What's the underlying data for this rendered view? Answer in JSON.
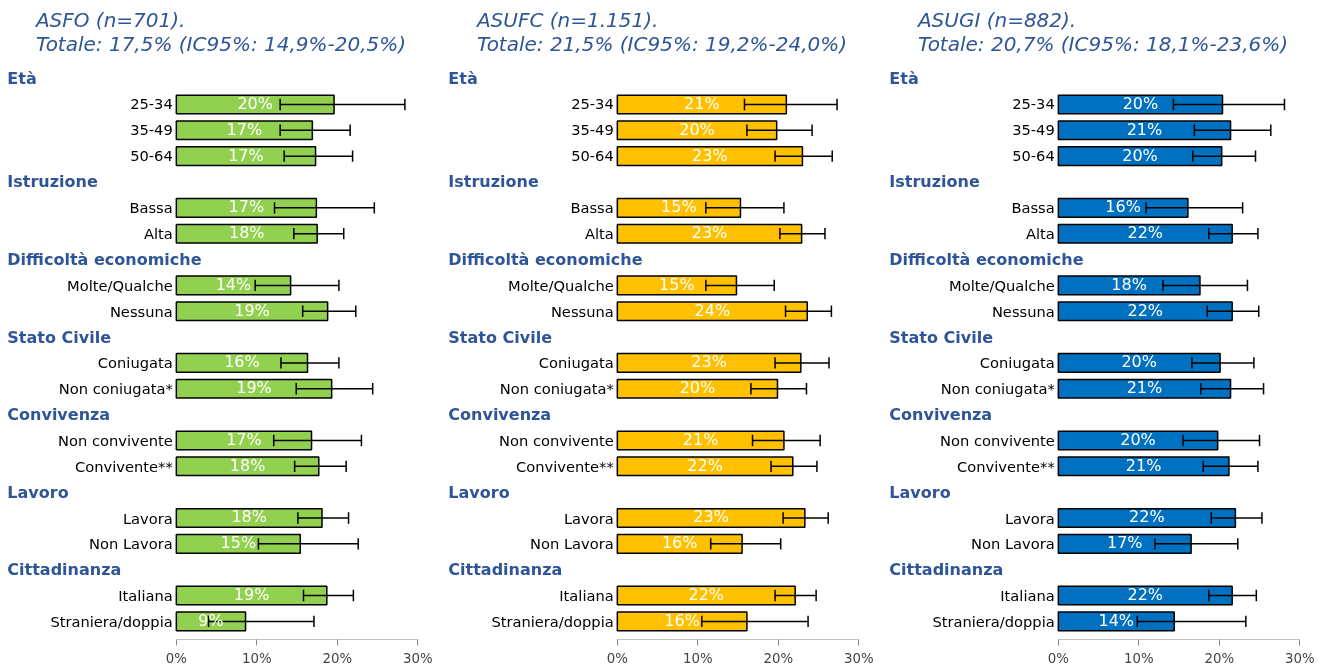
{
  "chart_data": [
    {
      "type": "bar",
      "orientation": "horizontal",
      "title": "ASFO (n=701).\nTotale: 17,5% (IC95%: 14,9%-20,5%)",
      "color": "#92d050",
      "categories": [
        null,
        "25-34",
        "35-49",
        "50-64",
        null,
        "Bassa",
        "Alta",
        null,
        "Molte/Qualche",
        "Nessuna",
        null,
        "Coniugata",
        "Non coniugata*",
        null,
        "Non convivente",
        "Convivente**",
        null,
        "Lavora",
        "Non Lavora",
        null,
        "Italiana",
        "Straniera/doppia"
      ],
      "annotations": [
        "Età",
        "Istruzione",
        "Difficoltà economiche",
        "Stato Civile",
        "Convivenza",
        "Lavoro",
        "Cittadinanza"
      ],
      "values": [
        null,
        19.6,
        16.9,
        17.3,
        null,
        17.4,
        17.5,
        null,
        14.2,
        18.8,
        null,
        16.3,
        19.3,
        null,
        16.8,
        17.7,
        null,
        18.1,
        15.4,
        null,
        18.7,
        8.6
      ],
      "value_labels": [
        null,
        "20%",
        "17%",
        "17%",
        null,
        "17%",
        "18%",
        null,
        "14%",
        "19%",
        null,
        "16%",
        "19%",
        null,
        "17%",
        "18%",
        null,
        "18%",
        "15%",
        null,
        "19%",
        "9%"
      ],
      "errors": [
        null,
        [
          12.9,
          28.4
        ],
        [
          12.9,
          21.6
        ],
        [
          13.4,
          21.9
        ],
        null,
        [
          12.2,
          24.6
        ],
        [
          14.6,
          20.8
        ],
        null,
        [
          9.8,
          20.2
        ],
        [
          15.7,
          22.3
        ],
        null,
        [
          13.0,
          20.2
        ],
        [
          14.9,
          24.4
        ],
        null,
        [
          12.1,
          23.0
        ],
        [
          14.7,
          21.1
        ],
        null,
        [
          15.1,
          21.4
        ],
        [
          10.2,
          22.6
        ],
        null,
        [
          15.8,
          22.0
        ],
        [
          4.0,
          17.1
        ]
      ],
      "xlim": [
        0,
        30
      ],
      "xticks": [
        {
          "value": 0,
          "label": "0%"
        },
        {
          "value": 10,
          "label": "10%"
        },
        {
          "value": 20,
          "label": "20%"
        },
        {
          "value": 30,
          "label": "30%"
        }
      ]
    },
    {
      "type": "bar",
      "orientation": "horizontal",
      "title": "ASUFC (n=1.151).\nTotale: 21,5% (IC95%: 19,2%-24,0%)",
      "color": "#ffc000",
      "categories": [
        null,
        "25-34",
        "35-49",
        "50-64",
        null,
        "Bassa",
        "Alta",
        null,
        "Molte/Qualche",
        "Nessuna",
        null,
        "Coniugata",
        "Non coniugata*",
        null,
        "Non convivente",
        "Convivente**",
        null,
        "Lavora",
        "Non Lavora",
        null,
        "Italiana",
        "Straniera/doppia"
      ],
      "annotations": [
        "Età",
        "Istruzione",
        "Difficoltà economiche",
        "Stato Civile",
        "Convivenza",
        "Lavoro",
        "Cittadinanza"
      ],
      "values": [
        null,
        21.0,
        19.8,
        23.0,
        null,
        15.3,
        22.9,
        null,
        14.8,
        23.6,
        null,
        22.8,
        19.9,
        null,
        20.7,
        21.8,
        null,
        23.3,
        15.5,
        null,
        22.1,
        16.1
      ],
      "value_labels": [
        null,
        "21%",
        "20%",
        "23%",
        null,
        "15%",
        "23%",
        null,
        "15%",
        "24%",
        null,
        "23%",
        "20%",
        null,
        "21%",
        "22%",
        null,
        "23%",
        "16%",
        null,
        "22%",
        "16%"
      ],
      "errors": [
        null,
        [
          15.8,
          27.3
        ],
        [
          16.1,
          24.2
        ],
        [
          19.6,
          26.7
        ],
        null,
        [
          11.0,
          20.7
        ],
        [
          20.2,
          25.8
        ],
        null,
        [
          11.0,
          19.5
        ],
        [
          20.9,
          26.6
        ],
        null,
        [
          19.6,
          26.3
        ],
        [
          16.6,
          23.5
        ],
        null,
        [
          16.8,
          25.2
        ],
        [
          19.1,
          24.8
        ],
        null,
        [
          20.6,
          26.2
        ],
        [
          11.6,
          20.3
        ],
        null,
        [
          19.6,
          24.7
        ],
        [
          10.5,
          23.7
        ]
      ],
      "xlim": [
        0,
        30
      ],
      "xticks": [
        {
          "value": 0,
          "label": "0%"
        },
        {
          "value": 10,
          "label": "10%"
        },
        {
          "value": 20,
          "label": "20%"
        },
        {
          "value": 30,
          "label": "30%"
        }
      ]
    },
    {
      "type": "bar",
      "orientation": "horizontal",
      "title": "ASUGI (n=882).\nTotale: 20,7% (IC95%: 18,1%-23,6%)",
      "color": "#0070c0",
      "categories": [
        null,
        "25-34",
        "35-49",
        "50-64",
        null,
        "Bassa",
        "Alta",
        null,
        "Molte/Qualche",
        "Nessuna",
        null,
        "Coniugata",
        "Non coniugata*",
        null,
        "Non convivente",
        "Convivente**",
        null,
        "Lavora",
        "Non Lavora",
        null,
        "Italiana",
        "Straniera/doppia"
      ],
      "annotations": [
        "Età",
        "Istruzione",
        "Difficoltà economiche",
        "Stato Civile",
        "Convivenza",
        "Lavoro",
        "Cittadinanza"
      ],
      "values": [
        null,
        20.4,
        21.4,
        20.3,
        null,
        16.1,
        21.6,
        null,
        17.6,
        21.6,
        null,
        20.1,
        21.4,
        null,
        19.8,
        21.2,
        null,
        22.0,
        16.5,
        null,
        21.6,
        14.4
      ],
      "value_labels": [
        null,
        "20%",
        "21%",
        "20%",
        null,
        "16%",
        "22%",
        null,
        "18%",
        "22%",
        null,
        "20%",
        "21%",
        null,
        "20%",
        "21%",
        null,
        "22%",
        "17%",
        null,
        "22%",
        "14%"
      ],
      "errors": [
        null,
        [
          14.3,
          28.1
        ],
        [
          16.9,
          26.4
        ],
        [
          16.7,
          24.5
        ],
        null,
        [
          10.9,
          22.9
        ],
        [
          18.7,
          24.8
        ],
        null,
        [
          13.0,
          23.5
        ],
        [
          18.5,
          24.9
        ],
        null,
        [
          16.6,
          24.3
        ],
        [
          17.7,
          25.5
        ],
        null,
        [
          15.5,
          25.0
        ],
        [
          18.0,
          24.8
        ],
        null,
        [
          19.0,
          25.3
        ],
        [
          12.0,
          22.3
        ],
        null,
        [
          18.7,
          24.6
        ],
        [
          9.8,
          23.3
        ]
      ],
      "xlim": [
        0,
        30
      ],
      "xticks": [
        {
          "value": 0,
          "label": "0%"
        },
        {
          "value": 10,
          "label": "10%"
        },
        {
          "value": 20,
          "label": "20%"
        },
        {
          "value": 30,
          "label": "30%"
        }
      ]
    }
  ]
}
